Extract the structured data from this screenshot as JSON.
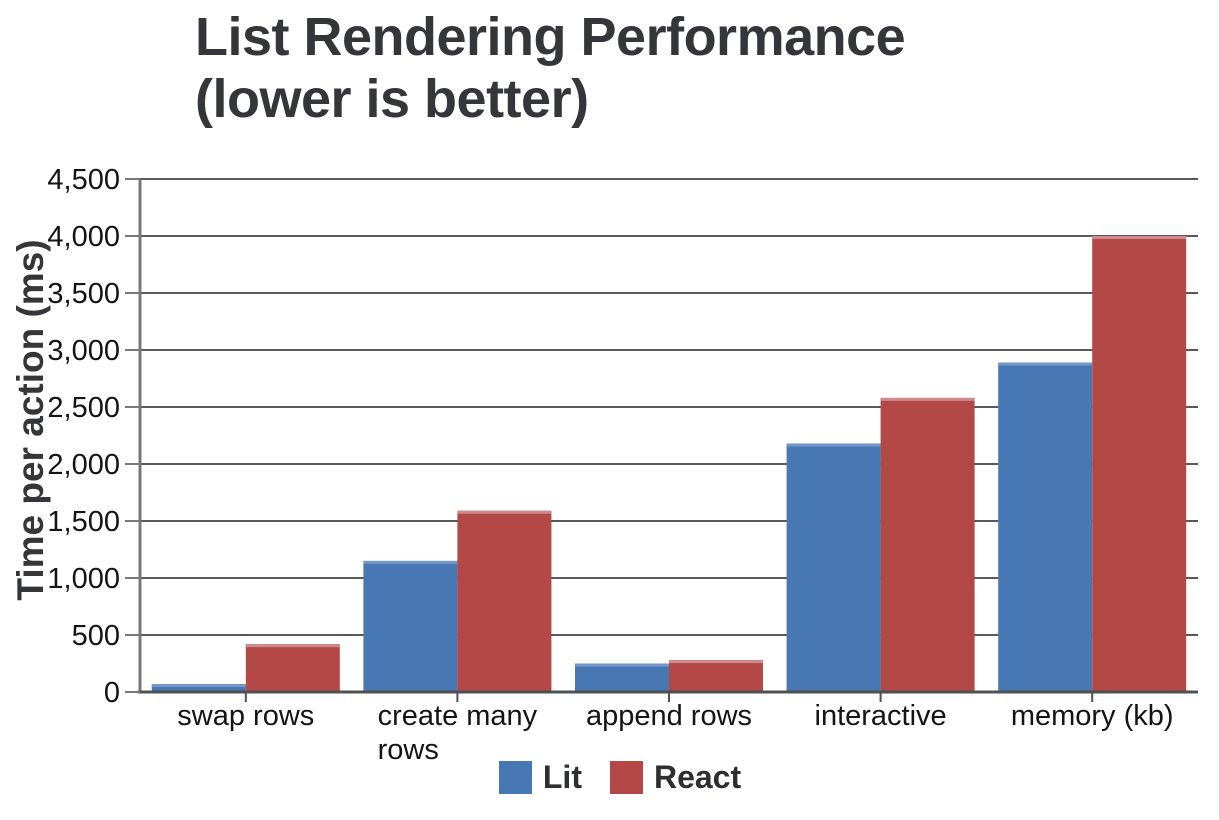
{
  "chart_data": {
    "type": "bar",
    "title": "List Rendering Performance (lower is better)",
    "title_lines": [
      "List Rendering Performance",
      "(lower is better)"
    ],
    "ylabel": "Time per action (ms)",
    "xlabel": "",
    "categories": [
      "swap rows",
      "create many\nrows",
      "append rows",
      "interactive",
      "memory (kb)"
    ],
    "series": [
      {
        "name": "Lit",
        "color": "#4878b4",
        "highlight": "#7498cb",
        "values": [
          70,
          1150,
          250,
          2180,
          2890
        ]
      },
      {
        "name": "React",
        "color": "#b44846",
        "highlight": "#cd8a8f",
        "values": [
          420,
          1590,
          280,
          2580,
          4000
        ]
      }
    ],
    "ylim": [
      0,
      4500
    ],
    "ytick_step": 500,
    "ytick_labels": [
      "0",
      "500",
      "1,000",
      "1,500",
      "2,000",
      "2,500",
      "3,000",
      "3,500",
      "4,000",
      "4,500"
    ],
    "grid": true,
    "legend_position": "bottom"
  },
  "colors": {
    "title_text": "#35363a",
    "grid_line": "#58595b",
    "axis_line": "#77787a",
    "baseline": "#4f5052",
    "tick_text": "#131416",
    "legend_text": "#2e2f33",
    "background": "#ffffff"
  }
}
